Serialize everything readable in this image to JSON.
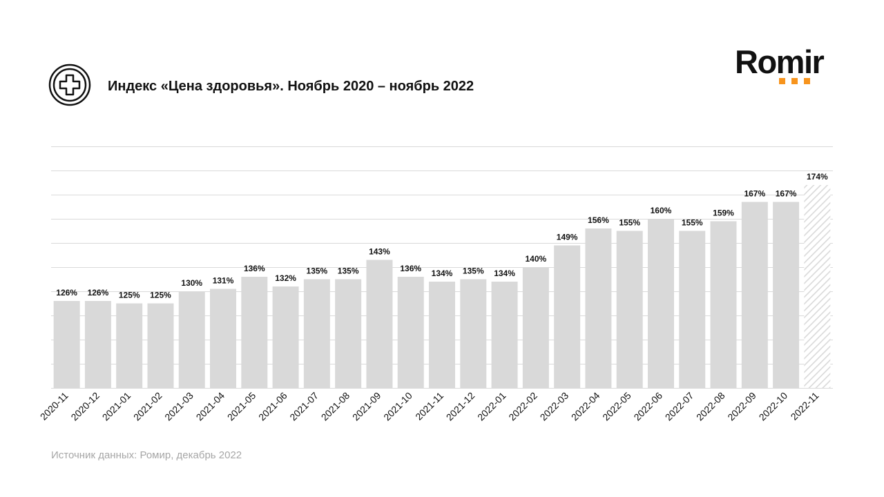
{
  "header": {
    "title": "Индекс «Цена здоровья». Ноябрь 2020 – ноябрь 2022",
    "icon": "medical-cross-icon"
  },
  "logo": {
    "text": "Romir",
    "accent_color": "#f7941d"
  },
  "footer": {
    "source": "Источник данных: Ромир, декабрь 2022"
  },
  "chart_data": {
    "type": "bar",
    "title": "Индекс «Цена здоровья». Ноябрь 2020 – ноябрь 2022",
    "categories": [
      "2020-11",
      "2020-12",
      "2021-01",
      "2021-02",
      "2021-03",
      "2021-04",
      "2021-05",
      "2021-06",
      "2021-07",
      "2021-08",
      "2021-09",
      "2021-10",
      "2021-11",
      "2021-12",
      "2022-01",
      "2022-02",
      "2022-03",
      "2022-04",
      "2022-05",
      "2022-06",
      "2022-07",
      "2022-08",
      "2022-09",
      "2022-10",
      "2022-11"
    ],
    "values": [
      126,
      126,
      125,
      125,
      130,
      131,
      136,
      132,
      135,
      135,
      143,
      136,
      134,
      135,
      134,
      140,
      149,
      156,
      155,
      160,
      155,
      159,
      167,
      167,
      174
    ],
    "labels": [
      "126%",
      "126%",
      "125%",
      "125%",
      "130%",
      "131%",
      "136%",
      "132%",
      "135%",
      "135%",
      "143%",
      "136%",
      "134%",
      "135%",
      "134%",
      "140%",
      "149%",
      "156%",
      "155%",
      "160%",
      "155%",
      "159%",
      "167%",
      "167%",
      "174%"
    ],
    "highlighted_last": true,
    "ylim": [
      90,
      190
    ],
    "grid": true,
    "colors": {
      "bar": "#d9d9d9",
      "last_bar_hatch": "#d9d9d9",
      "grid": "#d9d9d9"
    }
  }
}
